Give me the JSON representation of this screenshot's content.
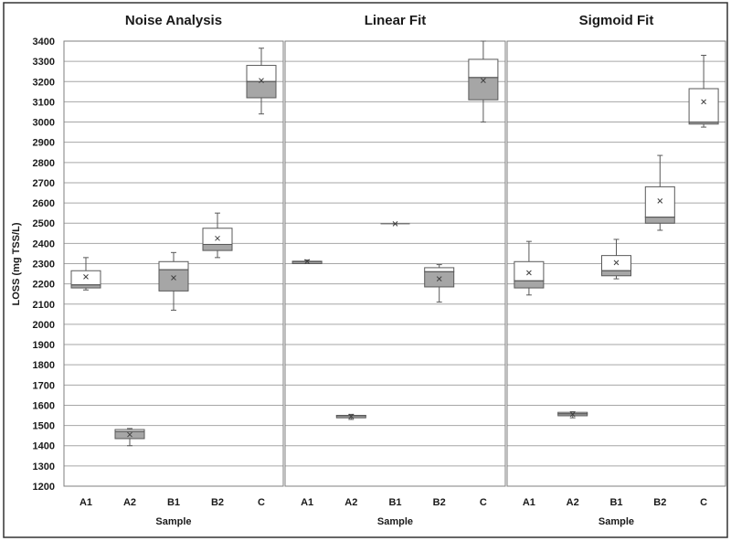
{
  "colors": {
    "gridline": "#a6a6a6",
    "upper_box": "#ffffff",
    "lower_box": "#a6a6a6",
    "stroke": "#595959",
    "mean_marker": "#404040"
  },
  "chart_data": {
    "type": "box",
    "ylabel": "LOSS (mg TSS/L)",
    "ylim": [
      1200,
      3400
    ],
    "ytick_step": 100,
    "grid": true,
    "legend": "none",
    "panels": [
      {
        "title": "Noise Analysis",
        "xlabel": "Sample",
        "categories": [
          "A1",
          "A2",
          "B1",
          "B2",
          "C"
        ],
        "boxes": [
          {
            "min": 2170,
            "q1": 2180,
            "median": 2195,
            "q3": 2265,
            "max": 2330,
            "mean": 2235
          },
          {
            "min": 1400,
            "q1": 1435,
            "median": 1470,
            "q3": 1480,
            "max": 1485,
            "mean": 1455
          },
          {
            "min": 2070,
            "q1": 2165,
            "median": 2270,
            "q3": 2310,
            "max": 2355,
            "mean": 2230
          },
          {
            "min": 2330,
            "q1": 2365,
            "median": 2395,
            "q3": 2475,
            "max": 2550,
            "mean": 2425
          },
          {
            "min": 3040,
            "q1": 3120,
            "median": 3200,
            "q3": 3280,
            "max": 3365,
            "mean": 3205
          }
        ]
      },
      {
        "title": "Linear Fit",
        "xlabel": "Sample",
        "categories": [
          "A1",
          "A2",
          "B1",
          "B2",
          "C"
        ],
        "boxes": [
          {
            "min": 2300,
            "q1": 2300,
            "median": 2310,
            "q3": 2312,
            "max": 2318,
            "mean": 2310
          },
          {
            "min": 1530,
            "q1": 1538,
            "median": 1548,
            "q3": 1550,
            "max": 1555,
            "mean": 1545
          },
          {
            "min": 2497,
            "q1": 2497,
            "median": 2497,
            "q3": 2497,
            "max": 2497,
            "mean": 2497
          },
          {
            "min": 2110,
            "q1": 2185,
            "median": 2260,
            "q3": 2280,
            "max": 2295,
            "mean": 2225
          },
          {
            "min": 3000,
            "q1": 3110,
            "median": 3220,
            "q3": 3310,
            "max": 3400,
            "mean": 3205
          }
        ]
      },
      {
        "title": "Sigmoid Fit",
        "xlabel": "Sample",
        "categories": [
          "A1",
          "A2",
          "B1",
          "B2",
          "C"
        ],
        "boxes": [
          {
            "min": 2145,
            "q1": 2180,
            "median": 2215,
            "q3": 2310,
            "max": 2410,
            "mean": 2255
          },
          {
            "min": 1538,
            "q1": 1548,
            "median": 1558,
            "q3": 1565,
            "max": 1568,
            "mean": 1555
          },
          {
            "min": 2225,
            "q1": 2240,
            "median": 2265,
            "q3": 2340,
            "max": 2420,
            "mean": 2305
          },
          {
            "min": 2465,
            "q1": 2500,
            "median": 2530,
            "q3": 2680,
            "max": 2835,
            "mean": 2610
          },
          {
            "min": 2975,
            "q1": 2990,
            "median": 3000,
            "q3": 3165,
            "max": 3330,
            "mean": 3100
          }
        ]
      }
    ]
  }
}
